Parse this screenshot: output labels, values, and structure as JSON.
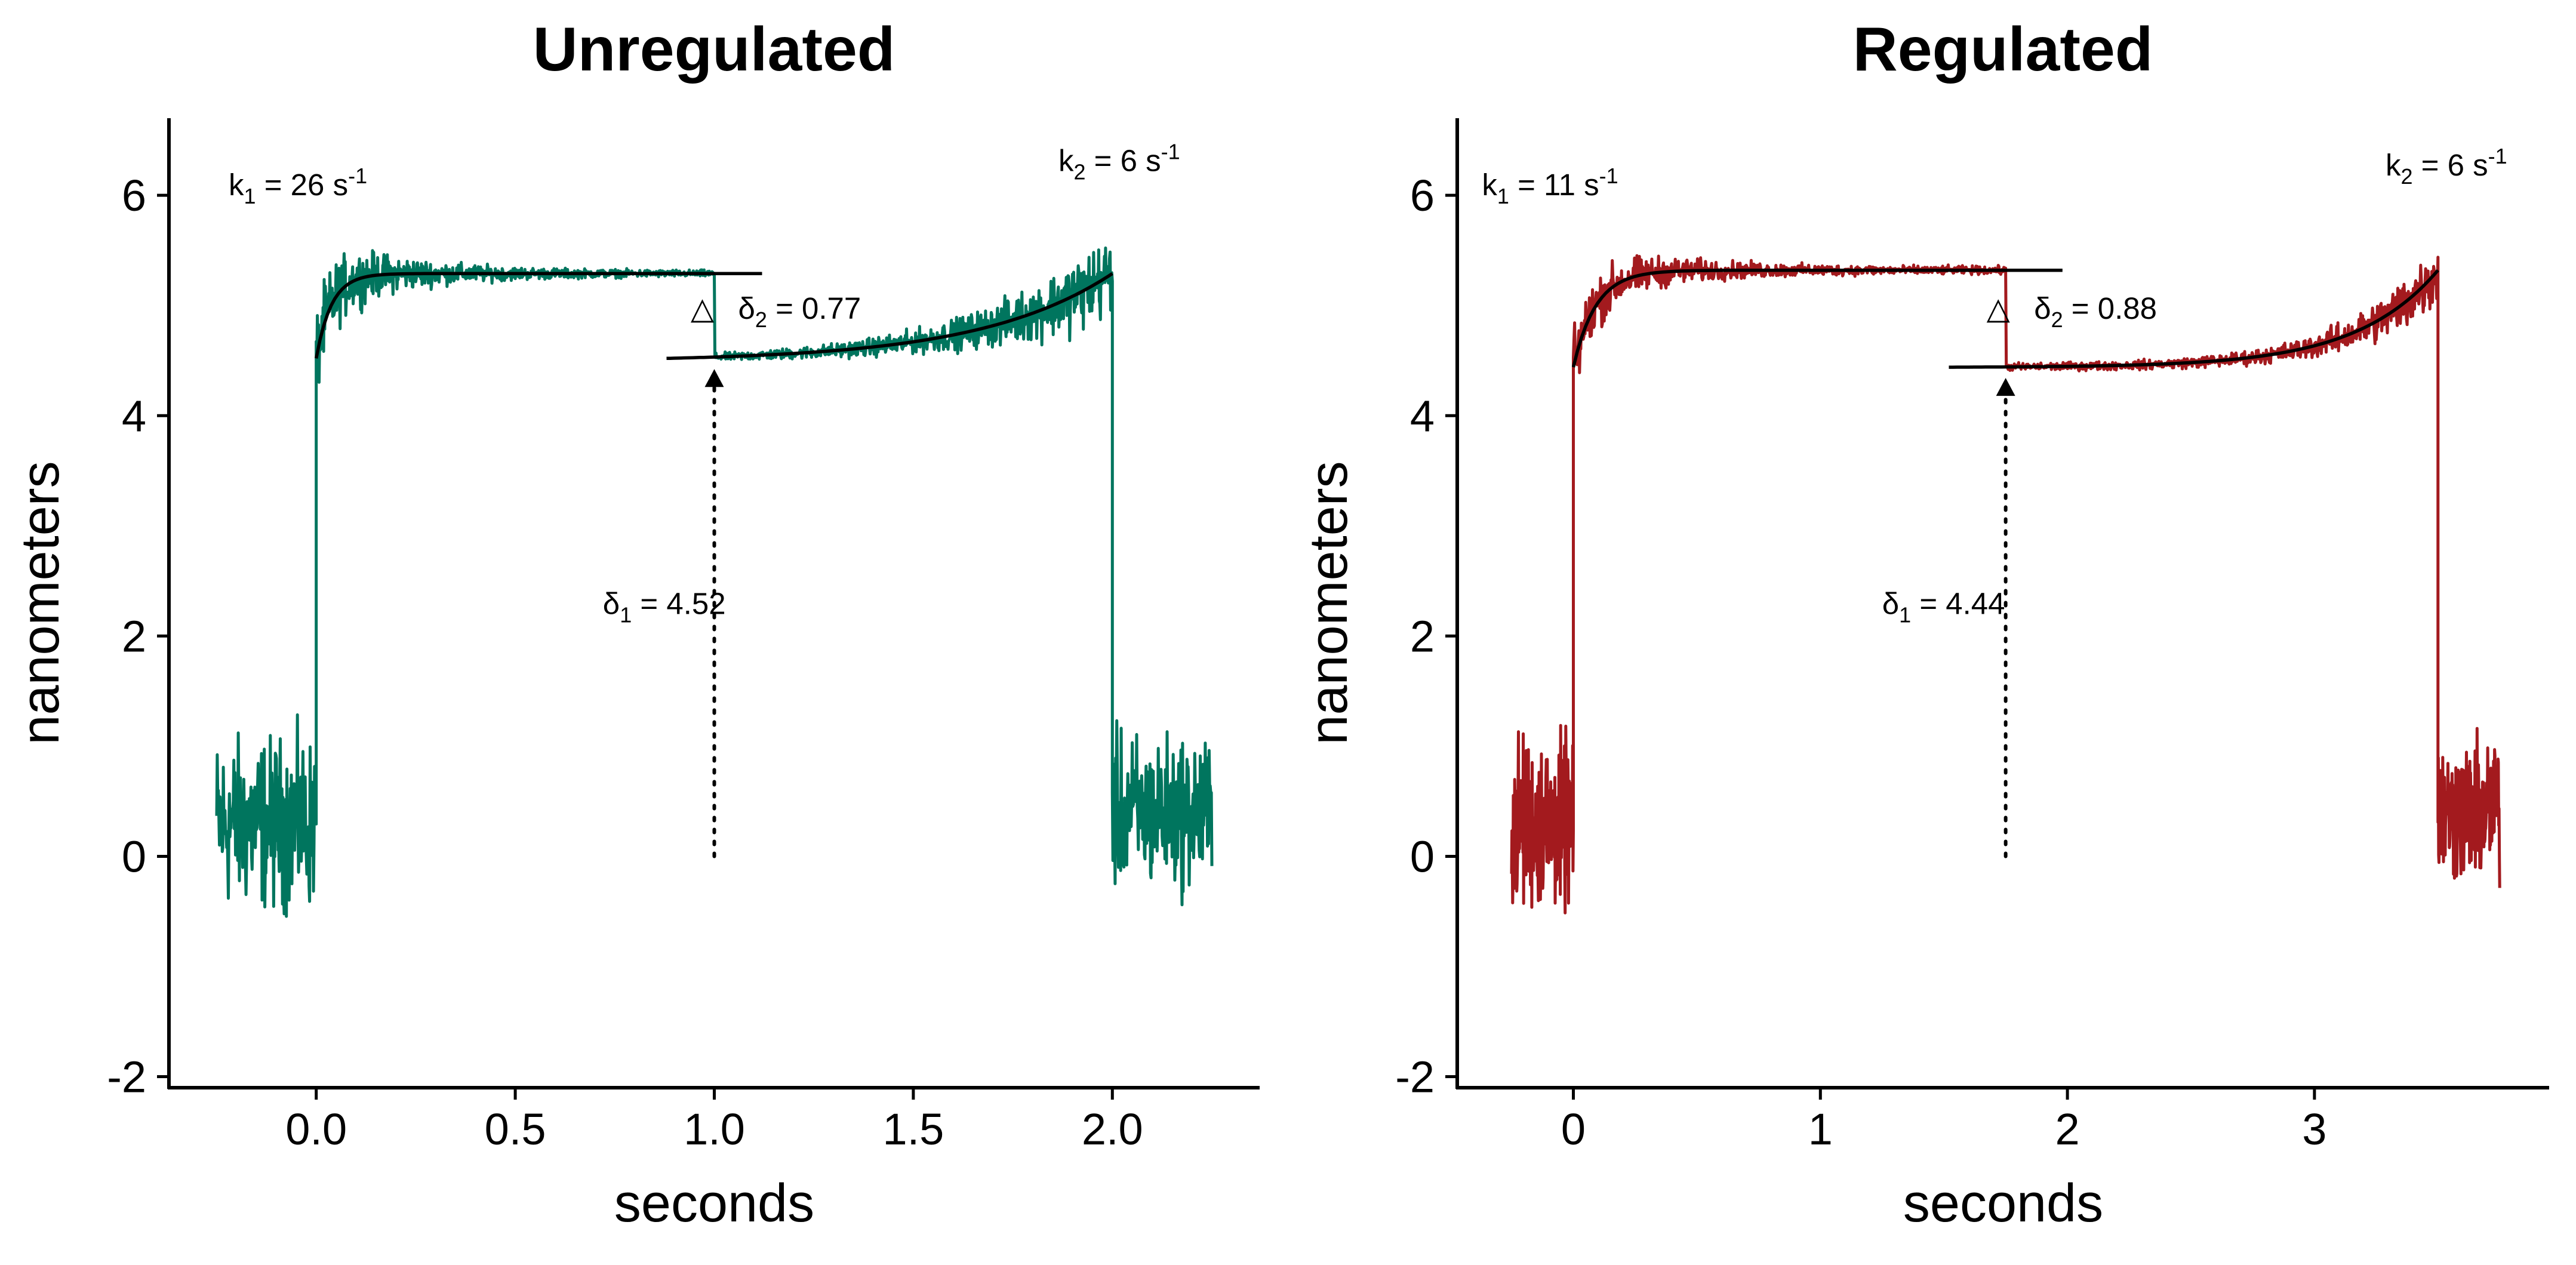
{
  "chart_data": [
    {
      "type": "line",
      "title": "Unregulated",
      "xlabel": "seconds",
      "ylabel": "nanometers",
      "xlim": [
        -0.37,
        2.37
      ],
      "ylim": [
        -2.1,
        6.7
      ],
      "x_ticks": [
        0.0,
        0.5,
        1.0,
        1.5,
        2.0
      ],
      "x_tick_labels": [
        "0.0",
        "0.5",
        "1.0",
        "1.5",
        "2.0"
      ],
      "y_ticks": [
        -2,
        0,
        2,
        4,
        6
      ],
      "y_tick_labels": [
        "-2",
        "0",
        "2",
        "4",
        "6"
      ],
      "grid": false,
      "trace_color": "#00755E",
      "fit_color": "#000000",
      "baseline": {
        "x_start": -0.25,
        "x_end": 0.0,
        "mean": 0.3,
        "spread": 1.1
      },
      "event": {
        "x_start": 0.0,
        "x_end": 2.0,
        "spread_early": 0.55,
        "spread_late": 0.04
      },
      "release": {
        "x_start": 2.0,
        "x_end": 2.25,
        "mean": 0.4,
        "spread": 1.0
      },
      "first_substep": {
        "x_start": 0.0,
        "x_end": 1.12,
        "fit_start": 4.52,
        "fit_plateau": 5.29,
        "rate": 26,
        "label_main": "k",
        "label_sub": "1",
        "label_rest": " = 26 s",
        "label_sup": "-1"
      },
      "second_substep": {
        "x_start": 0.88,
        "x_end": 2.0,
        "fit_start": 4.52,
        "fit_end": 5.29,
        "rate": 6,
        "label_main": "k",
        "label_sub": "2",
        "label_rest": " = 6 s",
        "label_sup": "-1"
      },
      "delta1": {
        "x": 1.0,
        "value": 4.52,
        "label_main": "δ",
        "label_sub": "1",
        "label_rest": " = 4.52"
      },
      "delta2": {
        "value": 0.77,
        "symbol": "△",
        "label_main": "δ",
        "label_sub": "2",
        "label_rest": " = 0.77"
      }
    },
    {
      "type": "line",
      "title": "Regulated",
      "xlabel": "seconds",
      "ylabel": "nanometers",
      "xlim": [
        -0.47,
        3.95
      ],
      "ylim": [
        -2.1,
        6.7
      ],
      "x_ticks": [
        0,
        1,
        2,
        3
      ],
      "x_tick_labels": [
        "0",
        "1",
        "2",
        "3"
      ],
      "y_ticks": [
        -2,
        0,
        2,
        4,
        6
      ],
      "y_tick_labels": [
        "-2",
        "0",
        "2",
        "4",
        "6"
      ],
      "grid": false,
      "trace_color": "#A31A1E",
      "fit_color": "#000000",
      "baseline": {
        "x_start": -0.25,
        "x_end": 0.0,
        "mean": 0.3,
        "spread": 1.1
      },
      "event": {
        "x_start": 0.0,
        "x_end": 3.5,
        "spread_early": 0.45,
        "spread_late": 0.05
      },
      "release": {
        "x_start": 3.5,
        "x_end": 3.75,
        "mean": 0.4,
        "spread": 0.9
      },
      "first_substep": {
        "x_start": 0.0,
        "x_end": 1.98,
        "fit_start": 4.44,
        "fit_plateau": 5.32,
        "rate": 11,
        "label_main": "k",
        "label_sub": "1",
        "label_rest": " = 11 s",
        "label_sup": "-1"
      },
      "second_substep": {
        "x_start": 1.52,
        "x_end": 3.5,
        "fit_start": 4.44,
        "fit_end": 5.32,
        "rate": 6,
        "label_main": "k",
        "label_sub": "2",
        "label_rest": " = 6 s",
        "label_sup": "-1"
      },
      "delta1": {
        "x": 1.75,
        "value": 4.44,
        "label_main": "δ",
        "label_sub": "1",
        "label_rest": " = 4.44"
      },
      "delta2": {
        "value": 0.88,
        "symbol": "△",
        "label_main": "δ",
        "label_sub": "2",
        "label_rest": " = 0.88"
      }
    }
  ]
}
